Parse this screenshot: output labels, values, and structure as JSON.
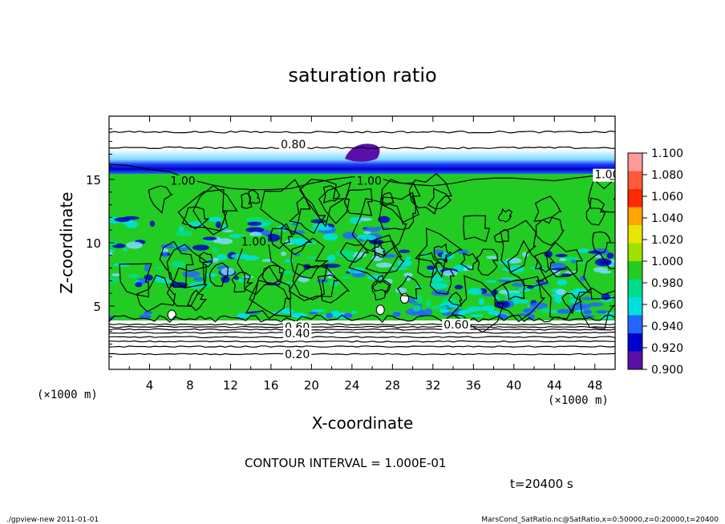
{
  "chart_data": {
    "type": "heatmap",
    "title": "saturation ratio",
    "xlabel": "X-coordinate",
    "ylabel": "Z-coordinate",
    "x_unit_label": "(×1000 m)",
    "x_unit_label_right": "(×1000 m)",
    "xlim": [
      0,
      50
    ],
    "ylim": [
      0,
      20
    ],
    "x_ticks": [
      "4",
      "8",
      "12",
      "16",
      "20",
      "24",
      "28",
      "32",
      "36",
      "40",
      "44",
      "48"
    ],
    "y_ticks": [
      "5",
      "10",
      "15"
    ],
    "colorbar": {
      "labels": [
        "1.100",
        "1.080",
        "1.060",
        "1.040",
        "1.020",
        "1.000",
        "0.980",
        "0.960",
        "0.940",
        "0.920",
        "0.900"
      ],
      "colors": [
        "#ff9a9a",
        "#ff5a3c",
        "#ff2a00",
        "#ffa500",
        "#e6e600",
        "#a0e000",
        "#22cc22",
        "#00dd88",
        "#00e0e0",
        "#2266ff",
        "#0000cc",
        "#5a10a8"
      ]
    },
    "contour_labels": [
      "0.80",
      "1.00",
      "1.00",
      "1.00",
      "1.00",
      "0.60",
      "0.40",
      "0.20",
      "0.60"
    ],
    "contour_interval_text": "CONTOUR INTERVAL = 1.000E-01",
    "time_text": "t=20400 s"
  },
  "footer": {
    "left": "./gpview-new   2011-01-01",
    "right": "MarsCond_SatRatio.nc@SatRatio,x=0:50000,z=0:20000,t=20400"
  }
}
